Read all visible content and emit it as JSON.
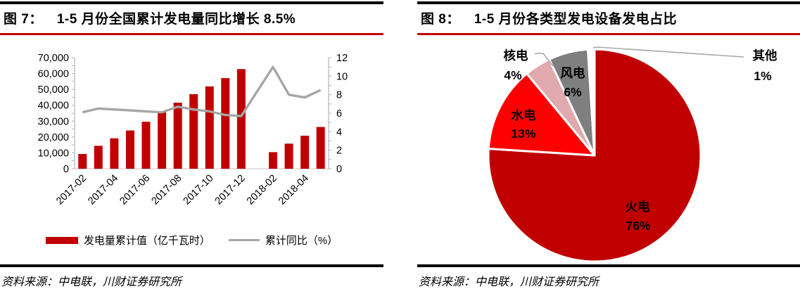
{
  "fig7": {
    "title_label": "图 7：",
    "title_text": "1-5 月份全国累计发电量同比增长 8.5%",
    "source": "资料来源：中电联，川财证券研究所",
    "legend": [
      {
        "label": "发电量累计值（亿千瓦时）",
        "swatch": "bar",
        "color": "#C00000"
      },
      {
        "label": "累计同比（%）",
        "swatch": "line",
        "color": "#A6A6A6"
      }
    ],
    "chart_data": {
      "type": "bar+line",
      "categories": [
        "2017-02",
        "2017-03",
        "2017-04",
        "2017-05",
        "2017-06",
        "2017-07",
        "2017-08",
        "2017-09",
        "2017-10",
        "2017-11",
        "2017-12",
        "2018-01",
        "2018-02",
        "2018-03",
        "2018-04",
        "2018-05"
      ],
      "x_tick_labels": [
        "2017-02",
        "2017-04",
        "2017-06",
        "2017-08",
        "2017-10",
        "2017-12",
        "2018-02",
        "2018-04"
      ],
      "series": [
        {
          "name": "发电量累计值（亿千瓦时）",
          "type": "bar",
          "axis": "left",
          "color": "#C00000",
          "values": [
            9315,
            14461,
            19192,
            24114,
            29598,
            35630,
            41656,
            47000,
            51900,
            57100,
            62760,
            null,
            10455,
            15812,
            20817,
            26300
          ]
        },
        {
          "name": "累计同比（%）",
          "type": "line",
          "axis": "right",
          "color": "#A6A6A6",
          "values": [
            6.1,
            6.5,
            6.4,
            6.3,
            6.2,
            6.1,
            6.7,
            6.4,
            6.2,
            5.8,
            5.7,
            null,
            11.0,
            8.0,
            7.7,
            8.5
          ]
        }
      ],
      "left_axis": {
        "min": 0,
        "max": 70000,
        "major_step": 10000,
        "minor_step": 5000,
        "tick_values": [
          70000,
          60000,
          50000,
          40000,
          30000,
          20000,
          10000,
          0
        ],
        "tick_labels": [
          "70,000",
          "60,000",
          "50,000",
          "40,000",
          "30,000",
          "20,000",
          "10,000",
          "0"
        ]
      },
      "right_axis": {
        "min": 0,
        "max": 12,
        "major_step": 2,
        "minor_step": 1,
        "tick_values": [
          12,
          10,
          8,
          6,
          4,
          2,
          0
        ],
        "tick_labels": [
          "12",
          "10",
          "8",
          "6",
          "4",
          "2",
          "0"
        ]
      },
      "grid": false,
      "legend_position": "bottom"
    }
  },
  "fig8": {
    "title_label": "图 8：",
    "title_text": "1-5 月份各类型发电设备发电占比",
    "source": "资料来源：中电联，川财证券研究所",
    "chart_data": {
      "type": "pie",
      "start_angle_deg": 0,
      "direction": "clockwise",
      "slices": [
        {
          "id": "thermal",
          "label": "火电",
          "pct": 76,
          "pct_label": "76%",
          "color": "#C00000",
          "label_position": "inside"
        },
        {
          "id": "hydro",
          "label": "水电",
          "pct": 13,
          "pct_label": "13%",
          "color": "#FF0000",
          "label_position": "inside"
        },
        {
          "id": "nuclear",
          "label": "核电",
          "pct": 4,
          "pct_label": "4%",
          "color": "#E0A9AD",
          "label_position": "outside"
        },
        {
          "id": "wind",
          "label": "风电",
          "pct": 6,
          "pct_label": "6%",
          "color": "#7F7F7F",
          "label_position": "inside"
        },
        {
          "id": "other",
          "label": "其他",
          "pct": 1,
          "pct_label": "1%",
          "color": "#FFFFFF",
          "label_position": "outside"
        }
      ]
    }
  },
  "colors": {
    "accent_dark_red": "#C00000",
    "bright_red": "#FF0000",
    "nuclear_pink": "#E0A9AD",
    "slice_gray": "#7F7F7F",
    "line_gray": "#A6A6A6",
    "axis_gray": "#BFBFBF",
    "title_rule_red": "#C00000",
    "rule_black": "#000000"
  }
}
